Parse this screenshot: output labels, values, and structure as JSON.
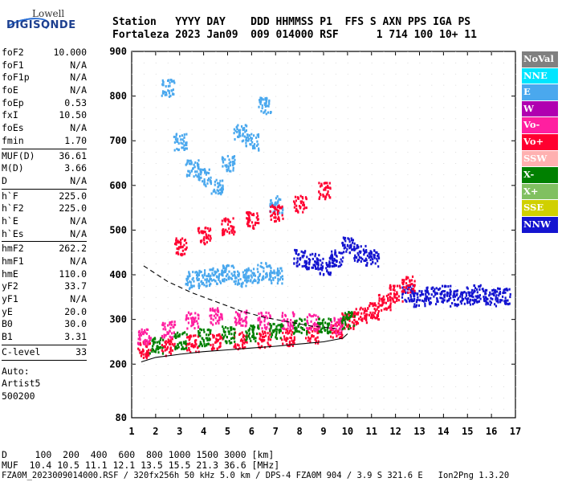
{
  "logo": {
    "line1": "Lowell",
    "line2": "DIGISONDE"
  },
  "header": {
    "line1": "Station   YYYY DAY    DDD HHMMSS P1  FFS S AXN PPS IGA PS",
    "line2": "Fortaleza 2023 Jan09  009 014000 RSF      1 714 100 10+ 11"
  },
  "params": {
    "group1": [
      [
        "foF2",
        "10.000"
      ],
      [
        "foF1",
        "N/A"
      ],
      [
        "foF1p",
        "N/A"
      ],
      [
        "foE",
        "N/A"
      ],
      [
        "foEp",
        "0.53"
      ],
      [
        "fxI",
        "10.50"
      ],
      [
        "foEs",
        "N/A"
      ],
      [
        "fmin",
        "1.70"
      ]
    ],
    "group2": [
      [
        "MUF(D)",
        "36.61"
      ],
      [
        "M(D)",
        "3.66"
      ],
      [
        "D",
        "N/A"
      ]
    ],
    "group3": [
      [
        "h`F",
        "225.0"
      ],
      [
        "h`F2",
        "225.0"
      ],
      [
        "h`E",
        "N/A"
      ],
      [
        "h`Es",
        "N/A"
      ]
    ],
    "group4": [
      [
        "hmF2",
        "262.2"
      ],
      [
        "hmF1",
        "N/A"
      ],
      [
        "hmE",
        "110.0"
      ],
      [
        "yF2",
        "33.7"
      ],
      [
        "yF1",
        "N/A"
      ],
      [
        "yE",
        "20.0"
      ],
      [
        "B0",
        "30.0"
      ],
      [
        "B1",
        "3.31"
      ]
    ],
    "group5": [
      [
        "C-level",
        "33"
      ]
    ],
    "auto": [
      "Auto:",
      "Artist5",
      "500200"
    ]
  },
  "bottom": {
    "line1": "D     100  200  400  600  800 1000 1500 3000 [km]",
    "line2": "MUF  10.4 10.5 11.1 12.1 13.5 15.5 21.3 36.6 [MHz]",
    "line3": "FZA0M_2023009014000.RSF / 320fx256h 50 kHz 5.0 km / DPS-4 FZA0M 904 / 3.9 S 321.6 E   Ion2Png 1.3.20"
  },
  "legend": [
    {
      "label": "NoVal",
      "color": "#808080"
    },
    {
      "label": "NNE",
      "color": "#00e5ff"
    },
    {
      "label": "E",
      "color": "#4aa8ee"
    },
    {
      "label": "W",
      "color": "#b000b0"
    },
    {
      "label": "Vo-",
      "color": "#ff1fa0"
    },
    {
      "label": "Vo+",
      "color": "#ff0030"
    },
    {
      "label": "SSW",
      "color": "#ffb0b0"
    },
    {
      "label": "X-",
      "color": "#008000"
    },
    {
      "label": "X+",
      "color": "#80c060"
    },
    {
      "label": "SSE",
      "color": "#d0d000"
    },
    {
      "label": "NNW",
      "color": "#1414d0"
    }
  ],
  "chart_data": {
    "type": "scatter",
    "title": "",
    "xlabel": "",
    "ylabel": "",
    "xlim": [
      1,
      17
    ],
    "ylim": [
      80,
      900
    ],
    "x_ticks": [
      1,
      2,
      3,
      4,
      5,
      6,
      7,
      8,
      9,
      10,
      11,
      12,
      13,
      14,
      15,
      16,
      17
    ],
    "y_ticks": [
      80,
      200,
      300,
      400,
      500,
      600,
      700,
      800,
      900
    ],
    "clusters": [
      {
        "name": "o-trace F layer",
        "color": "#ff0030",
        "x": [
          1.5,
          2.5,
          3.5,
          4.5,
          5.5,
          6.5,
          7.5,
          8.5,
          9.5,
          10.0
        ],
        "y": [
          235,
          240,
          248,
          252,
          255,
          258,
          262,
          268,
          278,
          300
        ]
      },
      {
        "name": "F band scatter",
        "color": "#ff1fa0",
        "x": [
          1.5,
          2.5,
          3.5,
          4.5,
          5.5,
          6.5,
          7.5,
          8.5,
          9.5
        ],
        "y": [
          265,
          280,
          300,
          310,
          305,
          300,
          300,
          295,
          290
        ]
      },
      {
        "name": "x-trace",
        "color": "#008000",
        "x": [
          2,
          3,
          4,
          5,
          6,
          7,
          8,
          9,
          10
        ],
        "y": [
          245,
          255,
          262,
          268,
          272,
          278,
          285,
          290,
          300
        ]
      },
      {
        "name": "E-direction high",
        "color": "#4aa8ee",
        "x": [
          2.5,
          3,
          3.5,
          4,
          4.5,
          5,
          5.5,
          6,
          6.5,
          7
        ],
        "y": [
          820,
          700,
          640,
          620,
          600,
          650,
          720,
          700,
          780,
          560
        ]
      },
      {
        "name": "oblique multi-hop",
        "color": "#ff0030",
        "x": [
          3,
          4,
          5,
          6,
          7,
          8,
          9
        ],
        "y": [
          465,
          490,
          510,
          525,
          540,
          560,
          590
        ]
      },
      {
        "name": "F2 spread",
        "color": "#4aa8ee",
        "x": [
          3.5,
          4,
          4.5,
          5,
          5.5,
          6,
          6.5,
          7
        ],
        "y": [
          390,
          395,
          400,
          405,
          395,
          400,
          410,
          400
        ]
      },
      {
        "name": "NNW cloud",
        "color": "#1414d0",
        "x": [
          8,
          8.5,
          9,
          9.5,
          10,
          10.5,
          11
        ],
        "y": [
          440,
          430,
          420,
          440,
          470,
          450,
          440
        ]
      },
      {
        "name": "NNW dense",
        "color": "#1414d0",
        "x": [
          12.5,
          13,
          13.5,
          14,
          14.5,
          15,
          15.5,
          16,
          16.5
        ],
        "y": [
          360,
          350,
          355,
          360,
          350,
          355,
          360,
          350,
          355
        ]
      },
      {
        "name": "foF2 cusp",
        "color": "#ff0030",
        "x": [
          10.5,
          11,
          11.5,
          12,
          12.5
        ],
        "y": [
          310,
          320,
          340,
          360,
          380
        ]
      }
    ],
    "profile_curves": [
      {
        "style": "dashed",
        "x": [
          1.5,
          2.5,
          3.5,
          4.5,
          5.5,
          6.5,
          7.5,
          8.5,
          9.5
        ],
        "y": [
          420,
          385,
          360,
          340,
          320,
          305,
          295,
          285,
          280
        ]
      },
      {
        "style": "solid",
        "x": [
          1.4,
          2,
          3,
          4,
          5,
          6,
          7,
          8,
          9,
          9.8,
          10
        ],
        "y": [
          205,
          215,
          222,
          228,
          232,
          236,
          240,
          245,
          250,
          258,
          268
        ]
      }
    ]
  }
}
